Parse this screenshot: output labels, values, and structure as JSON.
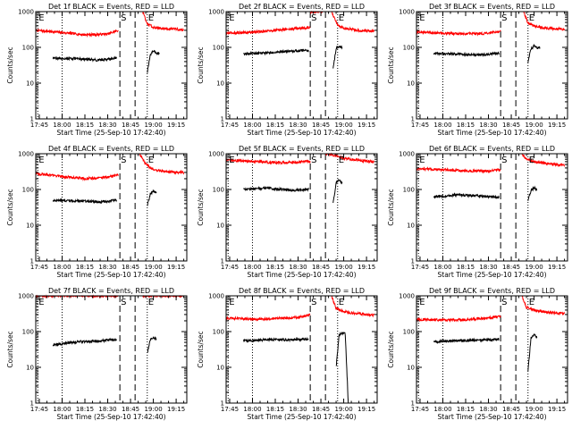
{
  "chart_data": [
    {
      "type": "line",
      "title": "Det 1f BLACK = Events, RED = LLD",
      "xlabel": "Start Time (25-Sep-10 17:42:40)",
      "ylabel": "Counts/sec",
      "ylog": true,
      "ylim": [
        1,
        1000
      ],
      "xlim": [
        "17:42:40",
        "19:22:00"
      ],
      "x_ticks": [
        "17:45",
        "18:00",
        "18:15",
        "18:30",
        "18:45",
        "19:00",
        "19:15"
      ],
      "y_ticks": [
        "1",
        "10",
        "100",
        "1000"
      ],
      "markers": [
        "E",
        "S",
        "E"
      ],
      "series": [
        {
          "color": "#ff0000",
          "segments": [
            {
              "x": [
                "17:42:40",
                "18:00",
                "18:15",
                "18:30",
                "18:37"
              ],
              "y": [
                300,
                260,
                225,
                235,
                300
              ]
            },
            {
              "x": [
                "18:53",
                "18:56",
                "19:00",
                "19:05",
                "19:10",
                "19:15",
                "19:20"
              ],
              "y": [
                1000,
                450,
                370,
                340,
                330,
                320,
                310
              ]
            }
          ]
        },
        {
          "color": "#000000",
          "segments": [
            {
              "x": [
                "17:54",
                "18:10",
                "18:25",
                "18:36"
              ],
              "y": [
                50,
                48,
                44,
                50
              ]
            },
            {
              "x": [
                "18:56",
                "18:58",
                "19:00",
                "19:02",
                "19:04"
              ],
              "y": [
                20,
                60,
                80,
                65,
                70
              ]
            }
          ]
        }
      ]
    },
    {
      "type": "line",
      "title": "Det 2f BLACK = Events, RED = LLD",
      "xlabel": "Start Time (25-Sep-10 17:42:40)",
      "ylabel": "Counts/sec",
      "ylog": true,
      "ylim": [
        1,
        1000
      ],
      "xlim": [
        "17:42:40",
        "19:22:00"
      ],
      "x_ticks": [
        "17:45",
        "18:00",
        "18:15",
        "18:30",
        "18:45",
        "19:00",
        "19:15"
      ],
      "y_ticks": [
        "1",
        "10",
        "100",
        "1000"
      ],
      "markers": [
        "E",
        "S",
        "E"
      ],
      "series": [
        {
          "color": "#ff0000",
          "segments": [
            {
              "x": [
                "17:42:40",
                "18:00",
                "18:15",
                "18:30",
                "18:38"
              ],
              "y": [
                250,
                265,
                300,
                340,
                360
              ]
            },
            {
              "x": [
                "18:38",
                "18:44",
                "18:46"
              ],
              "y": [
                1000,
                1000,
                1000
              ]
            },
            {
              "x": [
                "18:52",
                "18:56",
                "19:00",
                "19:05",
                "19:10",
                "19:15",
                "19:20"
              ],
              "y": [
                1000,
                420,
                340,
                320,
                300,
                290,
                280
              ]
            }
          ]
        },
        {
          "color": "#000000",
          "segments": [
            {
              "x": [
                "17:54",
                "18:10",
                "18:25",
                "18:37"
              ],
              "y": [
                65,
                70,
                78,
                82
              ]
            },
            {
              "x": [
                "18:53",
                "18:55",
                "18:57",
                "18:59"
              ],
              "y": [
                25,
                90,
                110,
                100
              ]
            }
          ]
        }
      ]
    },
    {
      "type": "line",
      "title": "Det 3f BLACK = Events, RED = LLD",
      "xlabel": "Start Time (25-Sep-10 17:42:40)",
      "ylabel": "Counts/sec",
      "ylog": true,
      "ylim": [
        1,
        1000
      ],
      "xlim": [
        "17:42:40",
        "19:22:00"
      ],
      "x_ticks": [
        "17:45",
        "18:00",
        "18:15",
        "18:30",
        "18:45",
        "19:00",
        "19:15"
      ],
      "y_ticks": [
        "1",
        "10",
        "100",
        "1000"
      ],
      "markers": [
        "E",
        "S",
        "E"
      ],
      "series": [
        {
          "color": "#ff0000",
          "segments": [
            {
              "x": [
                "17:42:40",
                "18:00",
                "18:15",
                "18:30",
                "18:38"
              ],
              "y": [
                270,
                250,
                240,
                245,
                280
              ]
            },
            {
              "x": [
                "18:53",
                "18:56",
                "19:00",
                "19:05",
                "19:10",
                "19:15",
                "19:20"
              ],
              "y": [
                1000,
                480,
                400,
                360,
                340,
                330,
                320
              ]
            }
          ]
        },
        {
          "color": "#000000",
          "segments": [
            {
              "x": [
                "17:54",
                "18:10",
                "18:25",
                "18:37"
              ],
              "y": [
                68,
                65,
                62,
                70
              ]
            },
            {
              "x": [
                "18:56",
                "18:58",
                "19:00",
                "19:02",
                "19:04"
              ],
              "y": [
                40,
                90,
                110,
                100,
                95
              ]
            }
          ]
        }
      ]
    },
    {
      "type": "line",
      "title": "Det 4f BLACK = Events, RED = LLD",
      "xlabel": "Start Time (25-Sep-10 17:42:40)",
      "ylabel": "Counts/sec",
      "ylog": true,
      "ylim": [
        1,
        1000
      ],
      "xlim": [
        "17:42:40",
        "19:22:00"
      ],
      "x_ticks": [
        "17:45",
        "18:00",
        "18:15",
        "18:30",
        "18:45",
        "19:00",
        "19:15"
      ],
      "y_ticks": [
        "1",
        "10",
        "100",
        "1000"
      ],
      "markers": [
        "E",
        "S",
        "E"
      ],
      "series": [
        {
          "color": "#ff0000",
          "segments": [
            {
              "x": [
                "17:42:40",
                "18:00",
                "18:15",
                "18:30",
                "18:37"
              ],
              "y": [
                280,
                230,
                200,
                220,
                260
              ]
            },
            {
              "x": [
                "18:51",
                "18:54",
                "18:57",
                "19:00",
                "19:05",
                "19:10",
                "19:15",
                "19:20"
              ],
              "y": [
                1000,
                600,
                440,
                360,
                330,
                310,
                300,
                300
              ]
            }
          ]
        },
        {
          "color": "#000000",
          "segments": [
            {
              "x": [
                "17:54",
                "18:10",
                "18:25",
                "18:36"
              ],
              "y": [
                50,
                48,
                45,
                50
              ]
            },
            {
              "x": [
                "18:56",
                "18:58",
                "19:00",
                "19:02"
              ],
              "y": [
                35,
                75,
                90,
                80
              ]
            }
          ]
        }
      ]
    },
    {
      "type": "line",
      "title": "Det 5f BLACK = Events, RED = LLD",
      "xlabel": "Start Time (25-Sep-10 17:42:40)",
      "ylabel": "Counts/sec",
      "ylog": true,
      "ylim": [
        1,
        1000
      ],
      "xlim": [
        "17:42:40",
        "19:22:00"
      ],
      "x_ticks": [
        "17:45",
        "18:00",
        "18:15",
        "18:30",
        "18:45",
        "19:00",
        "19:15"
      ],
      "y_ticks": [
        "1",
        "10",
        "100",
        "1000"
      ],
      "markers": [
        "E",
        "S",
        "E"
      ],
      "series": [
        {
          "color": "#ff0000",
          "segments": [
            {
              "x": [
                "17:42:40",
                "18:00",
                "18:15",
                "18:30",
                "18:38"
              ],
              "y": [
                650,
                620,
                560,
                580,
                620
              ]
            },
            {
              "x": [
                "18:48",
                "18:52",
                "18:56",
                "19:00",
                "19:05",
                "19:10",
                "19:15",
                "19:20"
              ],
              "y": [
                1000,
                950,
                850,
                750,
                700,
                650,
                620,
                600
              ]
            }
          ]
        },
        {
          "color": "#000000",
          "segments": [
            {
              "x": [
                "17:54",
                "18:10",
                "18:25",
                "18:37"
              ],
              "y": [
                100,
                110,
                95,
                100
              ]
            },
            {
              "x": [
                "18:53",
                "18:55",
                "18:57",
                "18:59"
              ],
              "y": [
                40,
                150,
                180,
                160
              ]
            }
          ]
        }
      ]
    },
    {
      "type": "line",
      "title": "Det 6f BLACK = Events, RED = LLD",
      "xlabel": "Start Time (25-Sep-10 17:42:40)",
      "ylabel": "Counts/sec",
      "ylog": true,
      "ylim": [
        1,
        1000
      ],
      "xlim": [
        "17:42:40",
        "19:22:00"
      ],
      "x_ticks": [
        "17:45",
        "18:00",
        "18:15",
        "18:30",
        "18:45",
        "19:00",
        "19:15"
      ],
      "y_ticks": [
        "1",
        "10",
        "100",
        "1000"
      ],
      "markers": [
        "E",
        "S",
        "E"
      ],
      "series": [
        {
          "color": "#ff0000",
          "segments": [
            {
              "x": [
                "17:42:40",
                "18:00",
                "18:15",
                "18:30",
                "18:38"
              ],
              "y": [
                380,
                360,
                330,
                330,
                360
              ]
            },
            {
              "x": [
                "18:52",
                "18:55",
                "19:00",
                "19:05",
                "19:10",
                "19:15",
                "19:20"
              ],
              "y": [
                1000,
                700,
                600,
                560,
                520,
                500,
                480
              ]
            }
          ]
        },
        {
          "color": "#000000",
          "segments": [
            {
              "x": [
                "17:54",
                "18:10",
                "18:25",
                "18:37"
              ],
              "y": [
                62,
                70,
                66,
                60
              ]
            },
            {
              "x": [
                "18:56",
                "18:58",
                "19:00",
                "19:02"
              ],
              "y": [
                50,
                95,
                110,
                100
              ]
            }
          ]
        }
      ]
    },
    {
      "type": "line",
      "title": "Det 7f BLACK = Events, RED = LLD",
      "xlabel": "Start Time (25-Sep-10 17:42:40)",
      "ylabel": "Counts/sec",
      "ylog": true,
      "ylim": [
        1,
        1000
      ],
      "xlim": [
        "17:42:40",
        "19:22:00"
      ],
      "x_ticks": [
        "17:45",
        "18:00",
        "18:15",
        "18:30",
        "18:45",
        "19:00",
        "19:15"
      ],
      "y_ticks": [
        "1",
        "10",
        "100",
        "1000"
      ],
      "markers": [
        "E",
        "S",
        "E"
      ],
      "series": [
        {
          "color": "#ff0000",
          "segments": [
            {
              "x": [
                "17:42:40",
                "18:00",
                "18:15",
                "18:30",
                "18:37"
              ],
              "y": [
                1000,
                1000,
                1000,
                1000,
                1000
              ]
            },
            {
              "x": [
                "18:53",
                "18:56",
                "19:00",
                "19:05",
                "19:10",
                "19:15",
                "19:20"
              ],
              "y": [
                1000,
                1000,
                1000,
                1000,
                1000,
                1000,
                1000
              ]
            }
          ]
        },
        {
          "color": "#000000",
          "segments": [
            {
              "x": [
                "17:54",
                "18:10",
                "18:25",
                "18:36"
              ],
              "y": [
                42,
                52,
                55,
                60
              ]
            },
            {
              "x": [
                "18:56",
                "18:58",
                "19:00",
                "19:02"
              ],
              "y": [
                25,
                60,
                70,
                60
              ]
            }
          ]
        }
      ]
    },
    {
      "type": "line",
      "title": "Det 8f BLACK = Events, RED = LLD",
      "xlabel": "Start Time (25-Sep-10 17:42:40)",
      "ylabel": "Counts/sec",
      "ylog": true,
      "ylim": [
        1,
        1000
      ],
      "xlim": [
        "17:42:40",
        "19:22:00"
      ],
      "x_ticks": [
        "17:45",
        "18:00",
        "18:15",
        "18:30",
        "18:45",
        "19:00",
        "19:15"
      ],
      "y_ticks": [
        "1",
        "10",
        "100",
        "1000"
      ],
      "markers": [
        "E",
        "S",
        "E"
      ],
      "series": [
        {
          "color": "#ff0000",
          "segments": [
            {
              "x": [
                "17:42:40",
                "18:00",
                "18:15",
                "18:30",
                "18:38"
              ],
              "y": [
                240,
                220,
                230,
                250,
                290
              ]
            },
            {
              "x": [
                "18:52",
                "18:55",
                "19:00",
                "19:05",
                "19:10",
                "19:15",
                "19:20"
              ],
              "y": [
                1000,
                450,
                360,
                330,
                320,
                300,
                290
              ]
            }
          ]
        },
        {
          "color": "#000000",
          "segments": [
            {
              "x": [
                "17:54",
                "18:10",
                "18:25",
                "18:37"
              ],
              "y": [
                55,
                60,
                58,
                62
              ]
            },
            {
              "x": [
                "18:55",
                "18:57",
                "18:59",
                "19:01",
                "19:03"
              ],
              "y": [
                10,
                80,
                90,
                85,
                1
              ]
            }
          ]
        }
      ]
    },
    {
      "type": "line",
      "title": "Det 9f BLACK = Events, RED = LLD",
      "xlabel": "Start Time (25-Sep-10 17:42:40)",
      "ylabel": "Counts/sec",
      "ylog": true,
      "ylim": [
        1,
        1000
      ],
      "xlim": [
        "17:42:40",
        "19:22:00"
      ],
      "x_ticks": [
        "17:45",
        "18:00",
        "18:15",
        "18:30",
        "18:45",
        "19:00",
        "19:15"
      ],
      "y_ticks": [
        "1",
        "10",
        "100",
        "1000"
      ],
      "markers": [
        "E",
        "S",
        "E"
      ],
      "series": [
        {
          "color": "#ff0000",
          "segments": [
            {
              "x": [
                "17:42:40",
                "18:00",
                "18:15",
                "18:30",
                "18:38"
              ],
              "y": [
                220,
                210,
                215,
                240,
                270
              ]
            },
            {
              "x": [
                "18:52",
                "18:55",
                "19:00",
                "19:05",
                "19:10",
                "19:15",
                "19:20"
              ],
              "y": [
                1000,
                480,
                400,
                360,
                340,
                330,
                320
              ]
            }
          ]
        },
        {
          "color": "#000000",
          "segments": [
            {
              "x": [
                "17:54",
                "18:10",
                "18:25",
                "18:37"
              ],
              "y": [
                52,
                56,
                58,
                60
              ]
            },
            {
              "x": [
                "18:56",
                "18:58",
                "19:00",
                "19:02"
              ],
              "y": [
                8,
                70,
                80,
                70
              ]
            }
          ]
        }
      ]
    }
  ]
}
